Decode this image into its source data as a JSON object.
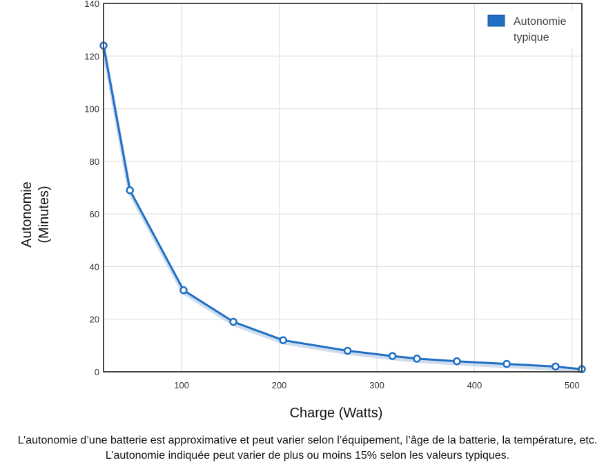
{
  "chart_data": {
    "type": "line",
    "xlabel": "Charge (Watts)",
    "ylabel_lines": [
      "Autonomie",
      "(Minutes)"
    ],
    "xlim": [
      20,
      510
    ],
    "ylim": [
      0,
      140
    ],
    "x_ticks": [
      100,
      200,
      300,
      400,
      500
    ],
    "y_ticks": [
      0,
      20,
      40,
      60,
      80,
      100,
      120,
      140
    ],
    "grid": true,
    "legend_position": "top-right",
    "series": [
      {
        "name_lines": [
          "Autonomie",
          "typique"
        ],
        "color": "#1f6fc5",
        "x": [
          20,
          47,
          102,
          153,
          204,
          270,
          316,
          341,
          382,
          433,
          483,
          510
        ],
        "y": [
          124,
          69,
          31,
          19,
          12,
          8,
          6,
          5,
          4,
          3,
          2,
          1
        ]
      }
    ]
  },
  "caption": "L’autonomie d’une batterie est approximative et peut varier selon l’équipement, l’âge de la batterie, la température, etc. L’autonomie indiquée peut varier de plus ou moins 15% selon les valeurs typiques."
}
